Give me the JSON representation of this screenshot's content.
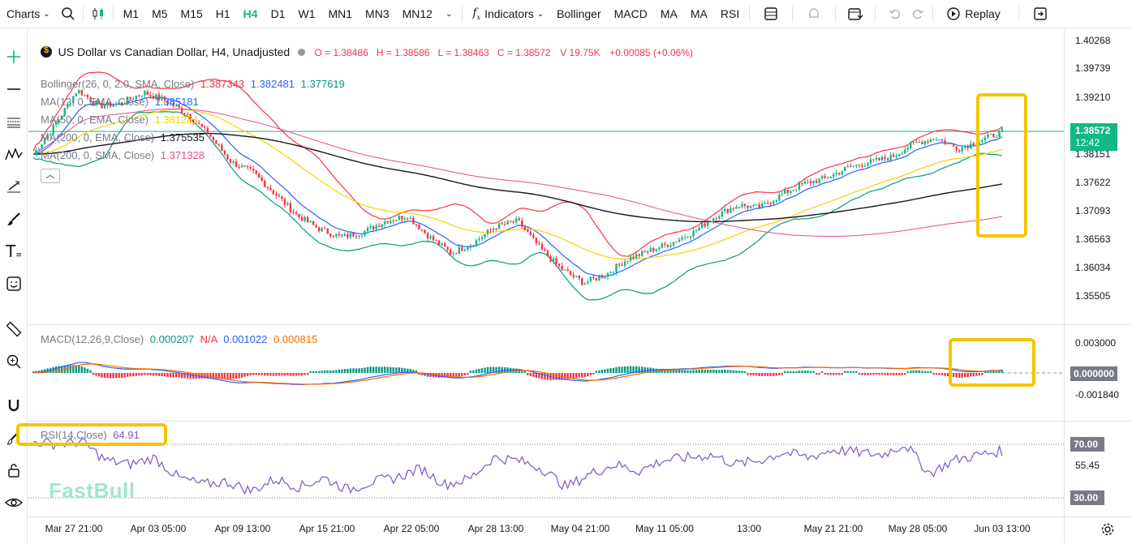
{
  "toolbar": {
    "charts": "Charts",
    "timeframes": [
      "M1",
      "M5",
      "M15",
      "H1",
      "H4",
      "D1",
      "W1",
      "MN1",
      "MN3",
      "MN12"
    ],
    "active_timeframe": "H4",
    "indicators": "Indicators",
    "quick_indicators": [
      "Bollinger",
      "MACD",
      "MA",
      "MA",
      "RSI"
    ],
    "replay": "Replay"
  },
  "header": {
    "symbol": "US Dollar vs Canadian Dollar, H4, Unadjusted",
    "ohlc": "O = 1.38486   H = 1.38586   L = 1.38463   C = 1.38572",
    "volume": "V 19.75K",
    "change": "+0.00085 (+0.06%)"
  },
  "legends": {
    "bollinger_label": "Bollinger(26, 0, 2.0, SMA, Close)",
    "bollinger_values": [
      "1.387343",
      "1.382481",
      "1.377619"
    ],
    "ma12_label": "MA(12, 0, EMA, Close)",
    "ma12_value": "1.385181",
    "ma50_label": "MA(50, 0, EMA, Close)",
    "ma50_value": "1.381281",
    "ma200ema_label": "MA(200, 0, EMA, Close)",
    "ma200ema_value": "1.375535",
    "ma200sma_label": "MA(200, 0, SMA, Close)",
    "ma200sma_value": "1.371328",
    "macd_label": "MACD(12,26,9,Close)",
    "macd_values": [
      "0.000207",
      "N/A",
      "0.001022",
      "0.000815"
    ],
    "rsi_label": "RSI(14,Close)",
    "rsi_value": "64.91"
  },
  "price_axis": {
    "ticks": [
      "1.40268",
      "1.39739",
      "1.39210",
      "1.38151",
      "1.37622",
      "1.37093",
      "1.36563",
      "1.36034",
      "1.35505"
    ],
    "current_price": "1.38572",
    "countdown": "12:42",
    "macd_ticks": [
      "0.003000",
      "-0.001840"
    ],
    "macd_current": "0.000000",
    "rsi_ticks": [
      "55.45"
    ],
    "rsi_tags": [
      "70.00",
      "30.00"
    ]
  },
  "time_axis": [
    "Mar 27 21:00",
    "Apr 03 05:00",
    "Apr 09 13:00",
    "Apr 15 21:00",
    "Apr 22 05:00",
    "Apr 28 13:00",
    "May 04 21:00",
    "May 11 05:00",
    "13:00",
    "May 21 21:00",
    "May 28 05:00",
    "Jun 03 13:00"
  ],
  "watermark": "FastBull",
  "colors": {
    "accent": "#12b886",
    "bull": "#12b886",
    "bear": "#f23645",
    "highlight": "#f5c400"
  },
  "chart_data": {
    "type": "candlestick",
    "main_close_path": [
      1.3815,
      1.387,
      1.3935,
      1.3905,
      1.391,
      1.393,
      1.3915,
      1.389,
      1.385,
      1.38,
      1.378,
      1.374,
      1.37,
      1.3675,
      1.366,
      1.367,
      1.369,
      1.37,
      1.366,
      1.363,
      1.365,
      1.368,
      1.369,
      1.364,
      1.36,
      1.3575,
      1.359,
      1.362,
      1.3635,
      1.365,
      1.367,
      1.37,
      1.372,
      1.3715,
      1.374,
      1.376,
      1.377,
      1.379,
      1.38,
      1.381,
      1.3835,
      1.3845,
      1.3825,
      1.384,
      1.3857
    ],
    "rsi_path": [
      72,
      70,
      72,
      58,
      55,
      60,
      45,
      40,
      42,
      35,
      44,
      38,
      45,
      36,
      42,
      45,
      52,
      40,
      44,
      60,
      58,
      52,
      38,
      48,
      55,
      50,
      58,
      60,
      62,
      55,
      58,
      64,
      60,
      66,
      64,
      62,
      70,
      48,
      58,
      62,
      65
    ]
  }
}
